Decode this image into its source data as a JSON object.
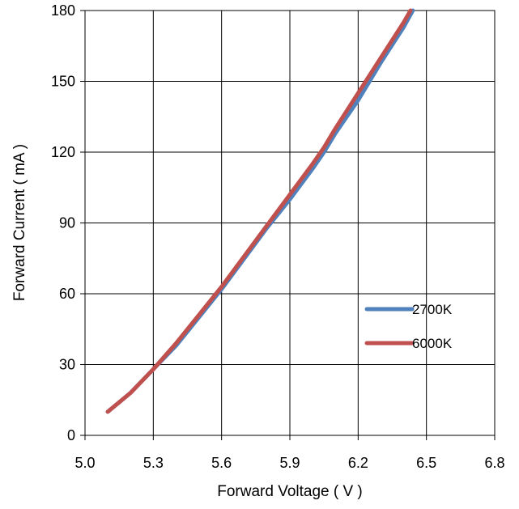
{
  "chart_data": {
    "type": "line",
    "title": "",
    "xlabel": "Forward Voltage ( V )",
    "ylabel": "Forward Current ( mA )",
    "xlim": [
      5.0,
      6.8
    ],
    "ylim": [
      0,
      180
    ],
    "xticks": [
      "5.0",
      "5.3",
      "5.6",
      "5.9",
      "6.2",
      "6.5",
      "6.8"
    ],
    "yticks": [
      "0",
      "30",
      "60",
      "90",
      "120",
      "150",
      "180"
    ],
    "grid": true,
    "legend_position": "lower-right",
    "series": [
      {
        "name": "2700K",
        "color": "#4F81BD",
        "x": [
          5.1,
          5.2,
          5.3,
          5.4,
          5.5,
          5.6,
          5.7,
          5.8,
          5.9,
          6.0,
          6.05,
          6.1,
          6.2,
          6.3,
          6.4,
          6.44
        ],
        "y": [
          10,
          18,
          28,
          38,
          50,
          62,
          75,
          88,
          100,
          113,
          120,
          128,
          142,
          158,
          173,
          180
        ]
      },
      {
        "name": "6000K",
        "color": "#C0504D",
        "x": [
          5.1,
          5.2,
          5.3,
          5.4,
          5.5,
          5.6,
          5.7,
          5.8,
          5.9,
          6.0,
          6.05,
          6.1,
          6.2,
          6.3,
          6.4,
          6.43
        ],
        "y": [
          10,
          18,
          28,
          39,
          51,
          63,
          76,
          89,
          102,
          115,
          122,
          130,
          145,
          160,
          175,
          180
        ]
      }
    ]
  }
}
